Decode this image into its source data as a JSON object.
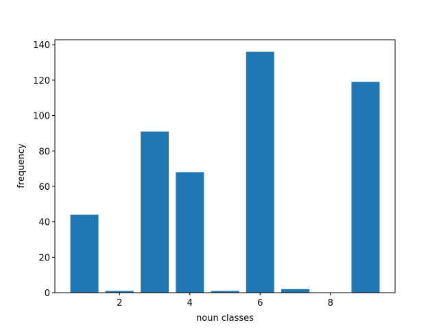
{
  "chart_data": {
    "type": "bar",
    "x": [
      1,
      2,
      3,
      4,
      5,
      6,
      7,
      8,
      9
    ],
    "values": [
      44,
      1,
      91,
      68,
      1,
      136,
      2,
      0,
      119
    ],
    "color": "#1f77b4",
    "xlabel": "noun classes",
    "ylabel": "frequency",
    "xlim": [
      0.16,
      9.84
    ],
    "xticks": [
      2,
      4,
      6,
      8
    ],
    "ylim": [
      0,
      142.8
    ],
    "yticks": [
      0,
      20,
      40,
      60,
      80,
      100,
      120,
      140
    ]
  }
}
